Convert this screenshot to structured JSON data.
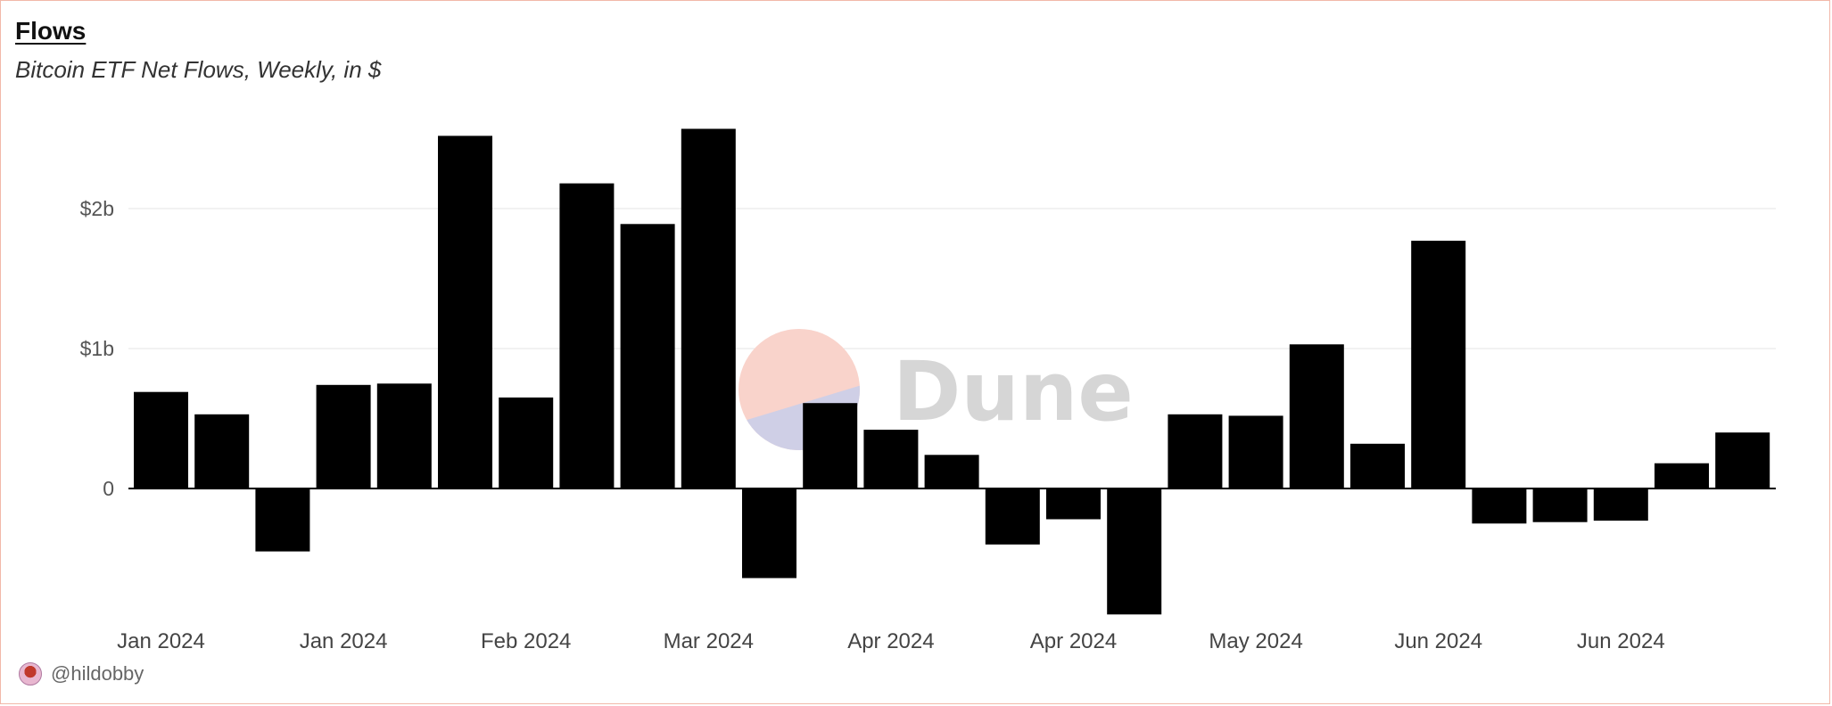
{
  "chart_data": {
    "type": "bar",
    "title": "Flows",
    "subtitle": "Bitcoin ETF Net Flows, Weekly, in $",
    "xlabel": "",
    "ylabel": "",
    "ylim": [
      -900000000,
      2600000000
    ],
    "y_ticks": [
      {
        "value": 0,
        "label": "0"
      },
      {
        "value": 1000000000,
        "label": "$1b"
      },
      {
        "value": 2000000000,
        "label": "$2b"
      }
    ],
    "x_tick_labels": [
      {
        "index": 0,
        "label": "Jan 2024"
      },
      {
        "index": 3,
        "label": "Jan 2024"
      },
      {
        "index": 6,
        "label": "Feb 2024"
      },
      {
        "index": 9,
        "label": "Mar 2024"
      },
      {
        "index": 12,
        "label": "Apr 2024"
      },
      {
        "index": 15,
        "label": "Apr 2024"
      },
      {
        "index": 18,
        "label": "May 2024"
      },
      {
        "index": 21,
        "label": "Jun 2024"
      },
      {
        "index": 24,
        "label": "Jun 2024"
      }
    ],
    "values": [
      690000000,
      530000000,
      -450000000,
      740000000,
      750000000,
      2520000000,
      650000000,
      2180000000,
      1890000000,
      2570000000,
      -640000000,
      610000000,
      420000000,
      240000000,
      -400000000,
      -220000000,
      -900000000,
      530000000,
      520000000,
      1030000000,
      320000000,
      1770000000,
      -250000000,
      -240000000,
      -230000000,
      180000000,
      400000000
    ],
    "grid": true,
    "legend": "none",
    "bar_color": "#000000",
    "watermark": "Dune"
  },
  "author": {
    "handle": "@hildobby",
    "avatar_icon": "avatar-icon"
  }
}
